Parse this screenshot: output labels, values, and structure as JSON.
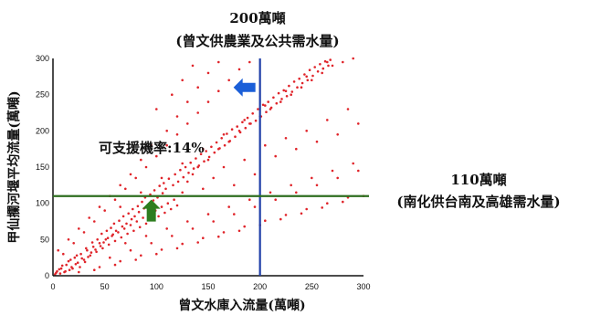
{
  "chart_data": {
    "type": "scatter",
    "title": "",
    "xlabel": "曾文水庫入流量(萬噸)",
    "ylabel": "甲仙攔河堰平均流量(萬噸)",
    "xlim": [
      0,
      300
    ],
    "ylim": [
      0,
      300
    ],
    "x_ticks": [
      0,
      50,
      100,
      150,
      200,
      250,
      300
    ],
    "y_ticks": [
      0,
      50,
      100,
      150,
      200,
      250,
      300
    ],
    "grid": false,
    "point_color": "#e0242a",
    "points": [
      [
        3,
        4
      ],
      [
        6,
        9
      ],
      [
        9,
        14
      ],
      [
        12,
        6
      ],
      [
        15,
        20
      ],
      [
        18,
        12
      ],
      [
        21,
        25
      ],
      [
        24,
        18
      ],
      [
        27,
        30
      ],
      [
        30,
        22
      ],
      [
        33,
        35
      ],
      [
        36,
        28
      ],
      [
        39,
        40
      ],
      [
        42,
        33
      ],
      [
        45,
        45
      ],
      [
        48,
        38
      ],
      [
        51,
        50
      ],
      [
        54,
        43
      ],
      [
        57,
        55
      ],
      [
        60,
        48
      ],
      [
        63,
        60
      ],
      [
        66,
        53
      ],
      [
        69,
        65
      ],
      [
        72,
        58
      ],
      [
        75,
        70
      ],
      [
        78,
        62
      ],
      [
        81,
        75
      ],
      [
        84,
        67
      ],
      [
        87,
        80
      ],
      [
        90,
        72
      ],
      [
        93,
        85
      ],
      [
        96,
        77
      ],
      [
        99,
        90
      ],
      [
        102,
        82
      ],
      [
        105,
        95
      ],
      [
        108,
        87
      ],
      [
        111,
        100
      ],
      [
        114,
        92
      ],
      [
        117,
        105
      ],
      [
        120,
        97
      ],
      [
        10,
        30
      ],
      [
        20,
        45
      ],
      [
        30,
        60
      ],
      [
        40,
        75
      ],
      [
        50,
        90
      ],
      [
        60,
        105
      ],
      [
        70,
        120
      ],
      [
        80,
        135
      ],
      [
        90,
        150
      ],
      [
        100,
        165
      ],
      [
        110,
        180
      ],
      [
        120,
        195
      ],
      [
        130,
        210
      ],
      [
        140,
        225
      ],
      [
        150,
        240
      ],
      [
        160,
        255
      ],
      [
        170,
        270
      ],
      [
        180,
        285
      ],
      [
        190,
        295
      ],
      [
        25,
        5
      ],
      [
        45,
        12
      ],
      [
        65,
        20
      ],
      [
        85,
        28
      ],
      [
        105,
        36
      ],
      [
        125,
        44
      ],
      [
        145,
        52
      ],
      [
        165,
        60
      ],
      [
        185,
        68
      ],
      [
        205,
        76
      ],
      [
        225,
        84
      ],
      [
        245,
        92
      ],
      [
        265,
        100
      ],
      [
        285,
        108
      ],
      [
        130,
        130
      ],
      [
        140,
        150
      ],
      [
        150,
        160
      ],
      [
        160,
        175
      ],
      [
        170,
        185
      ],
      [
        180,
        200
      ],
      [
        190,
        210
      ],
      [
        200,
        220
      ],
      [
        210,
        230
      ],
      [
        220,
        240
      ],
      [
        230,
        250
      ],
      [
        240,
        260
      ],
      [
        250,
        270
      ],
      [
        260,
        280
      ],
      [
        270,
        290
      ],
      [
        280,
        295
      ],
      [
        290,
        300
      ],
      [
        125,
        115
      ],
      [
        135,
        140
      ],
      [
        145,
        120
      ],
      [
        155,
        135
      ],
      [
        165,
        150
      ],
      [
        175,
        125
      ],
      [
        185,
        160
      ],
      [
        195,
        140
      ],
      [
        205,
        180
      ],
      [
        215,
        165
      ],
      [
        225,
        190
      ],
      [
        235,
        175
      ],
      [
        245,
        200
      ],
      [
        255,
        185
      ],
      [
        265,
        215
      ],
      [
        275,
        195
      ],
      [
        285,
        230
      ],
      [
        295,
        210
      ],
      [
        110,
        200
      ],
      [
        120,
        220
      ],
      [
        100,
        230
      ],
      [
        130,
        240
      ],
      [
        115,
        250
      ],
      [
        140,
        260
      ],
      [
        125,
        270
      ],
      [
        150,
        280
      ],
      [
        135,
        290
      ],
      [
        160,
        295
      ],
      [
        95,
        180
      ],
      [
        85,
        160
      ],
      [
        75,
        140
      ],
      [
        65,
        125
      ],
      [
        55,
        110
      ],
      [
        45,
        95
      ],
      [
        35,
        80
      ],
      [
        25,
        65
      ],
      [
        15,
        50
      ],
      [
        5,
        35
      ],
      [
        2,
        2
      ],
      [
        4,
        6
      ],
      [
        7,
        3
      ],
      [
        8,
        10
      ],
      [
        11,
        5
      ],
      [
        13,
        15
      ],
      [
        16,
        8
      ],
      [
        17,
        22
      ],
      [
        19,
        10
      ],
      [
        22,
        16
      ],
      [
        23,
        28
      ],
      [
        26,
        12
      ],
      [
        28,
        24
      ],
      [
        31,
        19
      ],
      [
        32,
        38
      ],
      [
        34,
        26
      ],
      [
        37,
        32
      ],
      [
        38,
        46
      ],
      [
        41,
        36
      ],
      [
        43,
        50
      ],
      [
        46,
        41
      ],
      [
        47,
        58
      ],
      [
        49,
        46
      ],
      [
        52,
        62
      ],
      [
        53,
        52
      ],
      [
        56,
        66
      ],
      [
        58,
        57
      ],
      [
        59,
        72
      ],
      [
        61,
        62
      ],
      [
        64,
        76
      ],
      [
        67,
        68
      ],
      [
        68,
        82
      ],
      [
        71,
        72
      ],
      [
        73,
        86
      ],
      [
        76,
        78
      ],
      [
        77,
        92
      ],
      [
        79,
        82
      ],
      [
        82,
        96
      ],
      [
        83,
        88
      ],
      [
        86,
        102
      ],
      [
        88,
        93
      ],
      [
        89,
        108
      ],
      [
        92,
        98
      ],
      [
        94,
        112
      ],
      [
        97,
        104
      ],
      [
        98,
        118
      ],
      [
        101,
        108
      ],
      [
        103,
        124
      ],
      [
        106,
        114
      ],
      [
        107,
        128
      ],
      [
        109,
        120
      ],
      [
        112,
        134
      ],
      [
        116,
        125
      ],
      [
        118,
        140
      ],
      [
        121,
        130
      ],
      [
        123,
        146
      ],
      [
        126,
        136
      ],
      [
        128,
        150
      ],
      [
        131,
        142
      ],
      [
        133,
        156
      ],
      [
        136,
        148
      ],
      [
        138,
        162
      ],
      [
        141,
        152
      ],
      [
        143,
        168
      ],
      [
        146,
        158
      ],
      [
        148,
        172
      ],
      [
        151,
        164
      ],
      [
        153,
        178
      ],
      [
        156,
        170
      ],
      [
        158,
        184
      ],
      [
        161,
        176
      ],
      [
        163,
        190
      ],
      [
        166,
        180
      ],
      [
        168,
        196
      ],
      [
        171,
        186
      ],
      [
        173,
        202
      ],
      [
        176,
        192
      ],
      [
        178,
        206
      ],
      [
        181,
        198
      ],
      [
        183,
        212
      ],
      [
        186,
        204
      ],
      [
        188,
        218
      ],
      [
        191,
        210
      ],
      [
        193,
        224
      ],
      [
        196,
        214
      ],
      [
        198,
        230
      ],
      [
        201,
        220
      ],
      [
        203,
        236
      ],
      [
        206,
        226
      ],
      [
        208,
        240
      ],
      [
        211,
        232
      ],
      [
        213,
        246
      ],
      [
        216,
        238
      ],
      [
        218,
        252
      ],
      [
        221,
        244
      ],
      [
        223,
        256
      ],
      [
        226,
        248
      ],
      [
        228,
        262
      ],
      [
        231,
        254
      ],
      [
        233,
        268
      ],
      [
        236,
        260
      ],
      [
        238,
        272
      ],
      [
        241,
        266
      ],
      [
        243,
        278
      ],
      [
        246,
        270
      ],
      [
        248,
        284
      ],
      [
        251,
        276
      ],
      [
        253,
        288
      ],
      [
        256,
        282
      ],
      [
        258,
        292
      ],
      [
        261,
        286
      ],
      [
        263,
        296
      ],
      [
        266,
        290
      ],
      [
        268,
        298
      ],
      [
        40,
        8
      ],
      [
        60,
        15
      ],
      [
        80,
        22
      ],
      [
        100,
        30
      ],
      [
        120,
        38
      ],
      [
        140,
        46
      ],
      [
        160,
        54
      ],
      [
        180,
        62
      ],
      [
        200,
        70
      ],
      [
        220,
        78
      ],
      [
        240,
        86
      ],
      [
        260,
        94
      ],
      [
        280,
        102
      ],
      [
        300,
        110
      ],
      [
        55,
        25
      ],
      [
        75,
        35
      ],
      [
        95,
        45
      ],
      [
        115,
        55
      ],
      [
        135,
        65
      ],
      [
        155,
        75
      ],
      [
        175,
        85
      ],
      [
        195,
        95
      ],
      [
        215,
        105
      ],
      [
        235,
        115
      ],
      [
        255,
        125
      ],
      [
        275,
        135
      ],
      [
        295,
        145
      ],
      [
        70,
        45
      ],
      [
        90,
        55
      ],
      [
        110,
        65
      ],
      [
        130,
        75
      ],
      [
        150,
        85
      ],
      [
        170,
        95
      ],
      [
        190,
        105
      ],
      [
        210,
        115
      ],
      [
        230,
        125
      ],
      [
        250,
        135
      ],
      [
        270,
        145
      ],
      [
        290,
        155
      ],
      [
        65,
        95
      ],
      [
        85,
        115
      ],
      [
        105,
        135
      ],
      [
        125,
        155
      ],
      [
        145,
        175
      ],
      [
        165,
        195
      ],
      [
        185,
        215
      ],
      [
        205,
        235
      ],
      [
        225,
        255
      ],
      [
        245,
        275
      ],
      [
        265,
        295
      ]
    ]
  },
  "annotations": {
    "top_title_1": "200萬噸",
    "top_title_2": "(曾文供農業及公共需水量)",
    "right_label_1": "110萬噸",
    "right_label_2": "(南化供台南及高雄需水量)",
    "support_rate": "可支援機率:14%"
  },
  "reference_lines": {
    "vertical_x": 200,
    "vertical_color": "#1f3fa8",
    "horizontal_y": 110,
    "horizontal_color": "#2e6e1f"
  },
  "arrows": [
    {
      "name": "left-arrow",
      "direction": "left",
      "color": "#1b5fd8",
      "at": [
        185,
        260
      ]
    },
    {
      "name": "up-arrow",
      "direction": "up",
      "color": "#2e7d1f",
      "at": [
        95,
        90
      ]
    }
  ]
}
